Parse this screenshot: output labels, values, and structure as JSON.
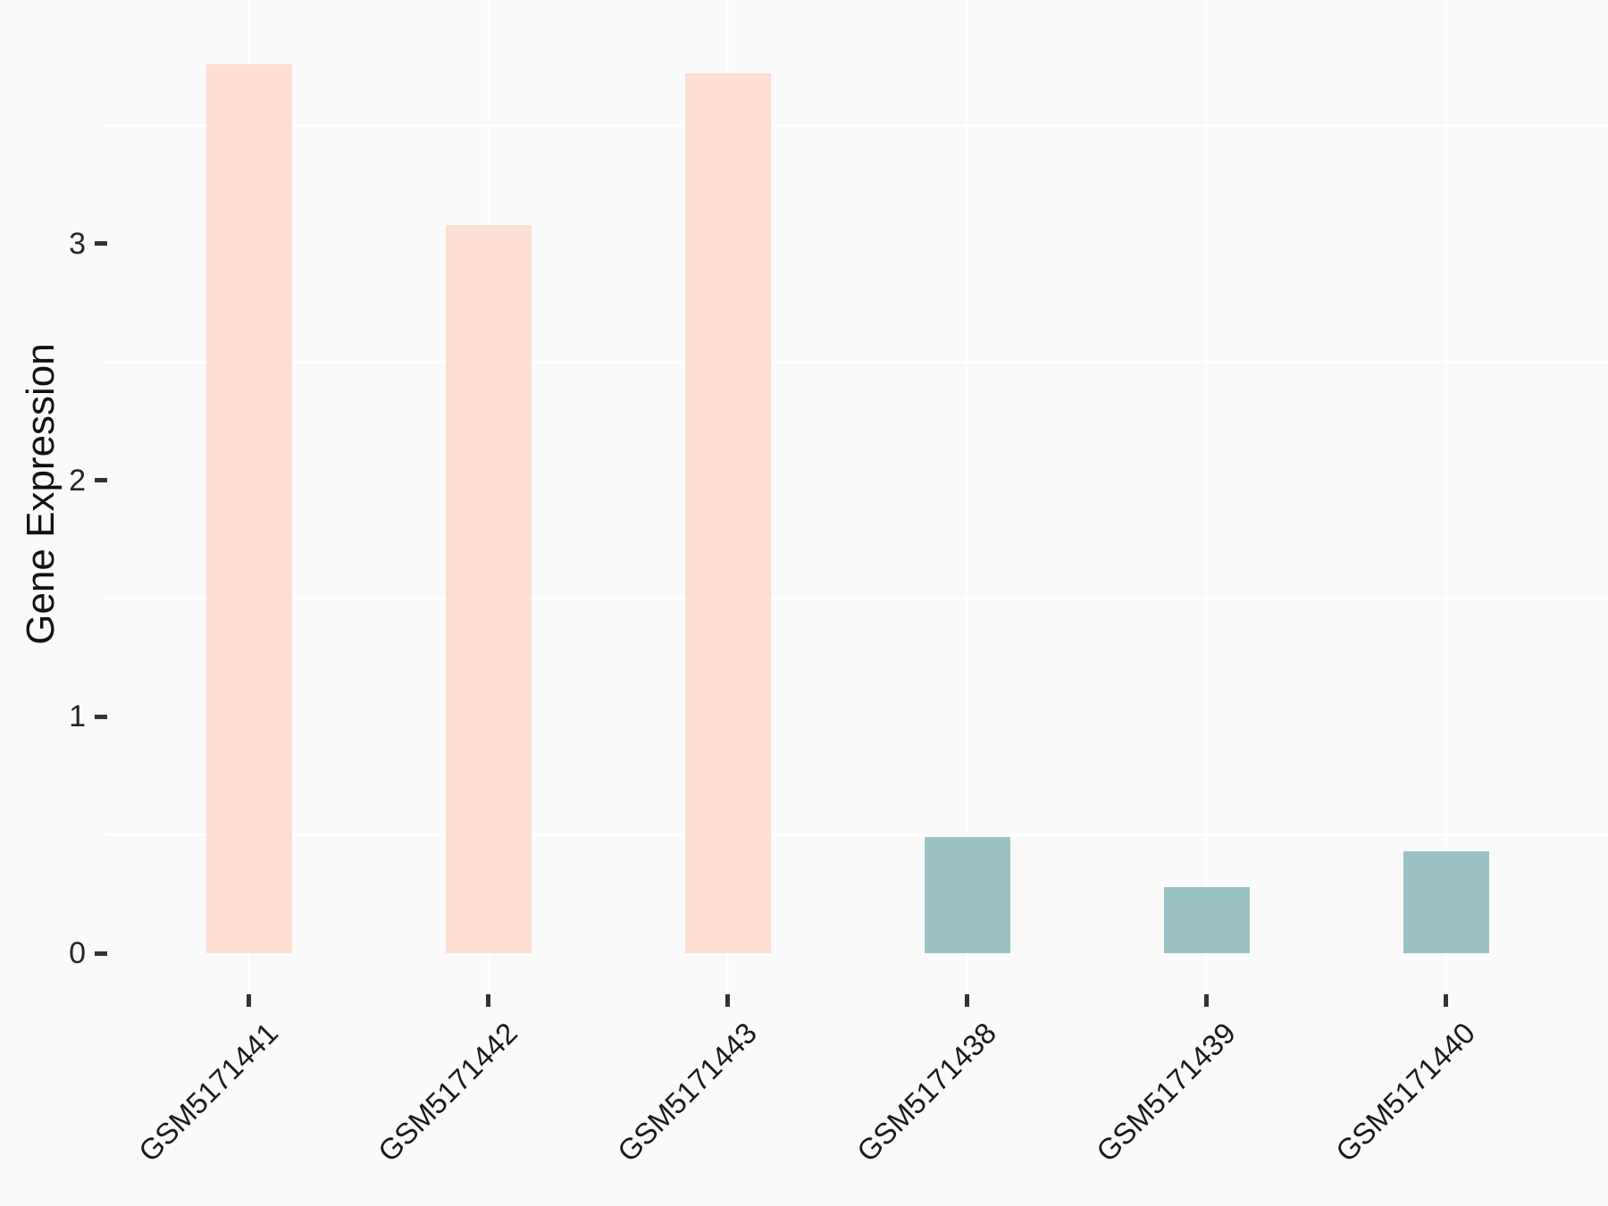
{
  "chart_data": {
    "type": "bar",
    "title": "",
    "xlabel": "",
    "ylabel": "Gene Expression",
    "categories": [
      "GSM5171441",
      "GSM5171442",
      "GSM5171443",
      "GSM5171438",
      "GSM5171439",
      "GSM5171440"
    ],
    "values": [
      3.76,
      3.08,
      3.72,
      0.49,
      0.28,
      0.43
    ],
    "bar_colors": [
      "#FCDED3",
      "#FCDED3",
      "#FCDED3",
      "#9AC2C4",
      "#9AC2C4",
      "#9AC2C4"
    ],
    "y_ticks": [
      0,
      1,
      2,
      3
    ],
    "y_minor_gridlines": [
      0.5,
      1.5,
      2.5,
      3.5
    ],
    "ylim": [
      0,
      4.0
    ],
    "grid": "white minor horizontal gridlines and vertical category gridlines on light panel",
    "legend_position": "none",
    "colors": {
      "background": "#FAFAFA",
      "gridline": "#FFFFFF",
      "tick_mark": "#333333",
      "axis_text": "#262626",
      "axis_title": "#111111"
    }
  }
}
